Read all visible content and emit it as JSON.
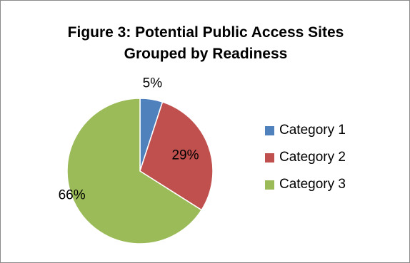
{
  "chart_data": {
    "type": "pie",
    "title": "Figure 3: Potential Public Access Sites Grouped by Readiness",
    "title_lines": [
      "Figure 3: Potential Public Access Sites",
      "Grouped by Readiness"
    ],
    "categories": [
      "Category 1",
      "Category 2",
      "Category 3"
    ],
    "values": [
      5,
      29,
      66
    ],
    "data_labels": [
      "5%",
      "29%",
      "66%"
    ],
    "colors": [
      "#4f81bd",
      "#c0504d",
      "#9bbb59"
    ],
    "legend_position": "right",
    "start_angle": "12 o'clock",
    "direction": "clockwise"
  }
}
